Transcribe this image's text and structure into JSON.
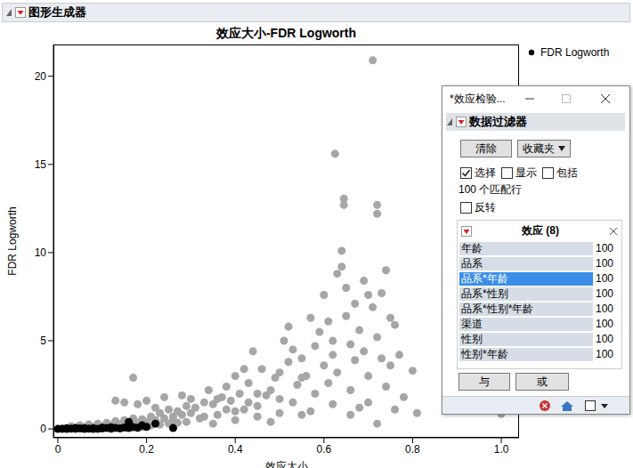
{
  "chart_data": {
    "type": "scatter",
    "header": "图形生成器",
    "title": "效应大小-FDR Logworth",
    "x_label": "效应大小",
    "y_label": "FDR Logworth",
    "xlim": [
      -0.01,
      1.04
    ],
    "xticks": [
      0,
      0.2,
      0.4,
      0.6,
      0.8,
      {
        "value": 1.0,
        "label": "1.0"
      }
    ],
    "ylim": [
      -0.5,
      21.8
    ],
    "yticks": [
      0,
      5,
      10,
      15,
      20
    ],
    "grid": false,
    "legend": "right",
    "series": [
      {
        "name": "FDR Logworth",
        "color": "#000000",
        "marker": "circle",
        "x": [
          0.01,
          0.02,
          0.03,
          0.04,
          0.05,
          0.06,
          0.07,
          0.08,
          0.09,
          0.1,
          0.11,
          0.12,
          0.13,
          0.14,
          0.15,
          0.16,
          0.17,
          0.18,
          0.19,
          0.2,
          0.21,
          0.22,
          0.23,
          0.24,
          0.25,
          0.26,
          0.27,
          0.28,
          0.29,
          0.3,
          0.03,
          0.05,
          0.07,
          0.09,
          0.11,
          0.13,
          0.15,
          0.17,
          0.19,
          0.21,
          0.23,
          0.25,
          0.27,
          0.29,
          0.31,
          0.33,
          0.35,
          0.37,
          0.39,
          0.41,
          0.17,
          0.13,
          0.15,
          0.18,
          0.2,
          0.24,
          0.22,
          0.26,
          0.28,
          0.3,
          0.32,
          0.34,
          0.36,
          0.38,
          0.4,
          0.42,
          0.44,
          0.43,
          0.45,
          0.47,
          0.49,
          0.5,
          0.51,
          0.52,
          0.52,
          0.53,
          0.54,
          0.55,
          0.56,
          0.57,
          0.58,
          0.58,
          0.59,
          0.6,
          0.6,
          0.61,
          0.61,
          0.62,
          0.62,
          0.625,
          0.63,
          0.63,
          0.64,
          0.64,
          0.645,
          0.645,
          0.65,
          0.65,
          0.66,
          0.66,
          0.67,
          0.67,
          0.68,
          0.68,
          0.69,
          0.69,
          0.7,
          0.7,
          0.71,
          0.71,
          0.72,
          0.72,
          0.72,
          0.73,
          0.73,
          0.74,
          0.74,
          0.75,
          0.75,
          0.76,
          0.77,
          0.78,
          0.8,
          0.81,
          0.35,
          0.4,
          0.45,
          0.48,
          0.5,
          0.55,
          0.57,
          0.62,
          0.66,
          0.7,
          0.72,
          0.76,
          0.4,
          0.46,
          0.48,
          0.5,
          0.53,
          0.55,
          0.38,
          0.33,
          0.36,
          0.43,
          1.0,
          0.45,
          0.42,
          0.0,
          0.01,
          0.02,
          0.03,
          0.04,
          0.05,
          0.06,
          0.07,
          0.08,
          0.09,
          0.1,
          0.11,
          0.12,
          0.13,
          0.14,
          0.15,
          0.16,
          0.17,
          0.18,
          0.2,
          0.22,
          0.16,
          0.19,
          0.26,
          0.02,
          0.04,
          0.06,
          0.08,
          0.1,
          0.12
        ],
        "values": [
          0.02,
          0.05,
          0.03,
          0.08,
          0.04,
          0.1,
          0.06,
          0.12,
          0.05,
          0.15,
          0.08,
          0.2,
          0.1,
          0.25,
          0.12,
          0.3,
          0.15,
          0.35,
          0.1,
          0.4,
          0.2,
          0.5,
          0.25,
          0.6,
          0.3,
          0.7,
          0.35,
          0.8,
          0.4,
          0.9,
          0.15,
          0.2,
          0.25,
          0.3,
          0.35,
          0.45,
          0.5,
          0.6,
          0.55,
          0.7,
          0.9,
          1.1,
          1.0,
          1.3,
          1.2,
          1.5,
          1.4,
          1.8,
          1.6,
          2.0,
          2.9,
          1.6,
          1.5,
          1.4,
          1.6,
          1.8,
          1.2,
          0.5,
          1.9,
          1.7,
          0.6,
          2.2,
          0.8,
          2.4,
          1.0,
          1.1,
          4.4,
          2.6,
          1.3,
          1.9,
          2.9,
          3.2,
          5.0,
          5.8,
          3.8,
          1.5,
          2.5,
          4.0,
          3.0,
          6.3,
          4.7,
          2.0,
          5.5,
          3.6,
          7.6,
          2.6,
          6.1,
          4.2,
          5.0,
          15.6,
          8.8,
          3.2,
          10.1,
          9.2,
          13.06,
          12.7,
          8.0,
          6.4,
          4.8,
          2.2,
          7.1,
          3.9,
          5.6,
          1.2,
          8.4,
          4.4,
          7.6,
          3.0,
          20.9,
          6.9,
          12.7,
          12.2,
          5.2,
          7.7,
          4.0,
          9.0,
          2.4,
          6.3,
          3.6,
          5.9,
          4.2,
          1.8,
          3.3,
          0.9,
          0.3,
          0.5,
          0.7,
          0.4,
          0.9,
          0.8,
          1.0,
          1.4,
          0.8,
          1.5,
          0.3,
          1.1,
          3.0,
          3.4,
          2.2,
          1.7,
          4.5,
          2.9,
          1.1,
          0.7,
          1.7,
          1.5,
          0.85,
          2.0,
          3.4,
          0.0,
          0.01,
          0.0,
          0.02,
          0.01,
          0.03,
          0.0,
          0.02,
          0.04,
          0.01,
          0.03,
          0.05,
          0.02,
          0.06,
          0.03,
          0.08,
          0.05,
          0.1,
          0.07,
          0.12,
          0.3,
          0.4,
          0.2,
          0.05,
          0.03,
          0.05,
          0.04,
          0.0,
          0.07,
          0.09
        ],
        "colors": [
          "#a6a6a6",
          "#a6a6a6",
          "#a6a6a6",
          "#a6a6a6",
          "#a6a6a6",
          "#a6a6a6",
          "#a6a6a6",
          "#a6a6a6",
          "#a6a6a6",
          "#a6a6a6",
          "#a6a6a6",
          "#a6a6a6",
          "#a6a6a6",
          "#a6a6a6",
          "#a6a6a6",
          "#a6a6a6",
          "#a6a6a6",
          "#a6a6a6",
          "#a6a6a6",
          "#a6a6a6",
          "#a6a6a6",
          "#a6a6a6",
          "#a6a6a6",
          "#a6a6a6",
          "#a6a6a6",
          "#a6a6a6",
          "#a6a6a6",
          "#a6a6a6",
          "#a6a6a6",
          "#a6a6a6",
          "#a6a6a6",
          "#a6a6a6",
          "#a6a6a6",
          "#a6a6a6",
          "#a6a6a6",
          "#a6a6a6",
          "#a6a6a6",
          "#a6a6a6",
          "#a6a6a6",
          "#a6a6a6",
          "#a6a6a6",
          "#a6a6a6",
          "#a6a6a6",
          "#a6a6a6",
          "#a6a6a6",
          "#a6a6a6",
          "#a6a6a6",
          "#a6a6a6",
          "#a6a6a6",
          "#a6a6a6",
          "#a6a6a6",
          "#a6a6a6",
          "#a6a6a6",
          "#a6a6a6",
          "#a6a6a6",
          "#a6a6a6",
          "#a6a6a6",
          "#a6a6a6",
          "#a6a6a6",
          "#a6a6a6",
          "#a6a6a6",
          "#a6a6a6",
          "#a6a6a6",
          "#a6a6a6",
          "#a6a6a6",
          "#a6a6a6",
          "#a6a6a6",
          "#a6a6a6",
          "#a6a6a6",
          "#a6a6a6",
          "#a6a6a6",
          "#a6a6a6",
          "#a6a6a6",
          "#a6a6a6",
          "#a6a6a6",
          "#a6a6a6",
          "#a6a6a6",
          "#a6a6a6",
          "#a6a6a6",
          "#a6a6a6",
          "#a6a6a6",
          "#a6a6a6",
          "#a6a6a6",
          "#a6a6a6",
          "#a6a6a6",
          "#a6a6a6",
          "#a6a6a6",
          "#a6a6a6",
          "#a6a6a6",
          "#a6a6a6",
          "#a6a6a6",
          "#a6a6a6",
          "#a6a6a6",
          "#a6a6a6",
          "#a6a6a6",
          "#a6a6a6",
          "#a6a6a6",
          "#a6a6a6",
          "#a6a6a6",
          "#a6a6a6",
          "#a6a6a6",
          "#a6a6a6",
          "#a6a6a6",
          "#a6a6a6",
          "#a6a6a6",
          "#a6a6a6",
          "#a6a6a6",
          "#a6a6a6",
          "#a6a6a6",
          "#a6a6a6",
          "#a6a6a6",
          "#a6a6a6",
          "#a6a6a6",
          "#a6a6a6",
          "#a6a6a6",
          "#a6a6a6",
          "#a6a6a6",
          "#a6a6a6",
          "#a6a6a6",
          "#a6a6a6",
          "#a6a6a6",
          "#a6a6a6",
          "#a6a6a6",
          "#a6a6a6",
          "#a6a6a6",
          "#a6a6a6",
          "#a6a6a6",
          "#a6a6a6",
          "#a6a6a6",
          "#a6a6a6",
          "#a6a6a6",
          "#a6a6a6",
          "#a6a6a6",
          "#a6a6a6",
          "#a6a6a6",
          "#a6a6a6",
          "#a6a6a6",
          "#a6a6a6",
          "#a6a6a6",
          "#a6a6a6",
          "#a6a6a6",
          "#a6a6a6",
          "#a6a6a6",
          "#a6a6a6",
          "#a6a6a6",
          "#a6a6a6",
          "#a6a6a6",
          "#a6a6a6",
          "#a6a6a6",
          "#000000",
          "#000000",
          "#000000",
          "#000000",
          "#000000",
          "#000000",
          "#000000",
          "#000000",
          "#000000",
          "#000000",
          "#000000",
          "#000000",
          "#000000",
          "#000000",
          "#000000",
          "#000000",
          "#000000",
          "#000000",
          "#000000",
          "#000000",
          "#000000",
          "#000000",
          "#000000",
          "#000000",
          "#000000",
          "#000000",
          "#000000",
          "#000000",
          "#000000",
          "#000000"
        ]
      }
    ]
  },
  "panel": {
    "title": "*效应检验...",
    "header": "数据过滤器",
    "buttons": [
      "清除",
      "收藏夹"
    ],
    "checkboxes": [
      {
        "label": "选择",
        "checked": true
      },
      {
        "label": "显示",
        "checked": false
      },
      {
        "label": "包括",
        "checked": false
      }
    ],
    "matched": "100 个匹配行",
    "invert": {
      "label": "反转",
      "checked": false
    },
    "list_title": "效应 (8)",
    "items": [
      {
        "label": "年龄",
        "count": 100
      },
      {
        "label": "品系",
        "count": 100
      },
      {
        "label": "品系*年龄",
        "count": 100,
        "selected": true
      },
      {
        "label": "品系*性别",
        "count": 100
      },
      {
        "label": "品系*性别*年龄",
        "count": 100
      },
      {
        "label": "渠道",
        "count": 100
      },
      {
        "label": "性别",
        "count": 100
      },
      {
        "label": "性别*年龄",
        "count": 100
      }
    ],
    "logic_buttons": [
      "与",
      "或"
    ]
  }
}
